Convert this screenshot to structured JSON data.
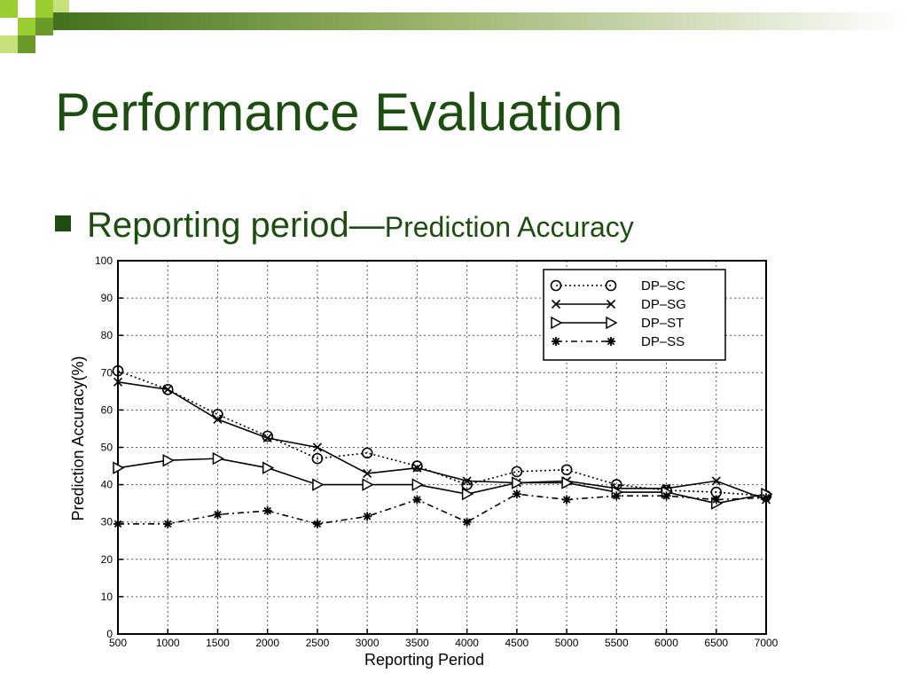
{
  "slide": {
    "title": "Performance Evaluation",
    "bullet_main": "Reporting period",
    "bullet_dash": "—",
    "bullet_sub": "Prediction Accuracy",
    "title_color": "#1e4d12",
    "band_colors": [
      "#9acd32",
      "#4a7a1e"
    ]
  },
  "chart_data": {
    "type": "line",
    "xlabel": "Reporting Period",
    "ylabel": "Prediction Accuracy(%)",
    "x": [
      500,
      1000,
      1500,
      2000,
      2500,
      3000,
      3500,
      4000,
      4500,
      5000,
      5500,
      6000,
      6500,
      7000
    ],
    "xlim": [
      500,
      7000
    ],
    "ylim": [
      0,
      100
    ],
    "yticks": [
      0,
      10,
      20,
      30,
      40,
      50,
      60,
      70,
      80,
      90,
      100
    ],
    "grid": true,
    "legend_position": "top-right",
    "series": [
      {
        "name": "DP–SC",
        "marker": "circle",
        "dash": "dotted",
        "values": [
          70.5,
          65.5,
          58.8,
          53.0,
          47.0,
          48.5,
          45.0,
          40.0,
          43.5,
          44.0,
          40.0,
          38.5,
          38.0,
          37.0
        ]
      },
      {
        "name": "DP–SG",
        "marker": "x",
        "dash": "solid",
        "values": [
          67.5,
          65.5,
          57.5,
          52.5,
          50.0,
          43.0,
          44.5,
          41.0,
          40.5,
          41.0,
          39.0,
          39.0,
          41.0,
          36.0
        ]
      },
      {
        "name": "DP–ST",
        "marker": "triangle",
        "dash": "solid",
        "values": [
          44.5,
          46.5,
          47.0,
          44.5,
          40.0,
          40.0,
          40.0,
          37.5,
          40.5,
          40.5,
          38.0,
          38.0,
          35.0,
          37.5
        ]
      },
      {
        "name": "DP–SS",
        "marker": "star",
        "dash": "dashdot",
        "values": [
          29.5,
          29.5,
          32.0,
          33.0,
          29.5,
          31.5,
          36.0,
          30.0,
          37.5,
          36.0,
          37.0,
          37.0,
          36.0,
          36.5
        ]
      }
    ]
  }
}
